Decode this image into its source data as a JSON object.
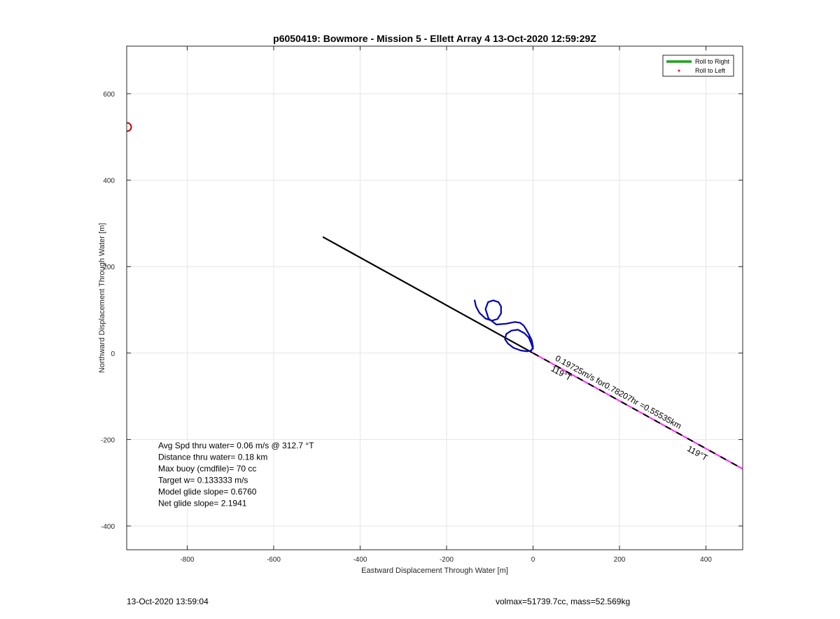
{
  "footer": {
    "left": "13-Oct-2020 13:59:04",
    "right": "volmax=51739.7cc, mass=52.569kg"
  },
  "chart_data": {
    "type": "line",
    "title": "p6050419: Bowmore - Mission 5 - Ellett Array 4 13-Oct-2020 12:59:29Z",
    "xlabel": "Eastward Displacement Through Water [m]",
    "ylabel": "Northward Displacement Through Water [m]",
    "xlim": [
      -940,
      485
    ],
    "ylim": [
      -455,
      710
    ],
    "xticks": [
      -800,
      -600,
      -400,
      -200,
      0,
      200,
      400
    ],
    "yticks": [
      -400,
      -200,
      0,
      200,
      400,
      600
    ],
    "grid": true,
    "legend": {
      "position": "top-right",
      "entries": [
        {
          "label": "Roll to Right",
          "color": "#1aa31a",
          "style": "line"
        },
        {
          "label": "Roll to Left",
          "color": "#ff0000",
          "style": "point"
        }
      ]
    },
    "series": [
      {
        "color": "#000000",
        "style": "solid",
        "x": [
          -485,
          0
        ],
        "y": [
          268,
          0
        ]
      },
      {
        "color": "#0000b3",
        "style": "solid",
        "x": [
          -135,
          -132,
          -124,
          -110,
          -95,
          -82,
          -74,
          -74,
          -80,
          -92,
          -104,
          -110,
          -103,
          -85,
          -62,
          -42,
          -30,
          -22,
          -16,
          -10,
          -3,
          0,
          -4,
          -14,
          -28,
          -45,
          -58,
          -65,
          -62,
          -50,
          -35,
          -20,
          -10,
          -4,
          0
        ],
        "y": [
          122,
          108,
          93,
          80,
          75,
          79,
          92,
          108,
          118,
          122,
          118,
          102,
          80,
          66,
          68,
          72,
          70,
          64,
          55,
          44,
          30,
          14,
          6,
          4,
          6,
          12,
          22,
          32,
          44,
          52,
          54,
          46,
          36,
          22,
          10
        ]
      },
      {
        "color": "#ff33ff",
        "style": "solid",
        "x": [
          0,
          485
        ],
        "y": [
          0,
          -268
        ]
      },
      {
        "color": "#000000",
        "style": "dashed",
        "x": [
          0,
          485
        ],
        "y": [
          0,
          -268
        ]
      }
    ],
    "markers": [
      {
        "shape": "circle",
        "color": "#cc0000",
        "x": -940,
        "y": 523
      }
    ],
    "annotations": [
      {
        "text": "0.19725m/s for0.78207hr =0.55535km",
        "x": 50,
        "y": -16,
        "angle": 29
      },
      {
        "text": "119°T",
        "x": 40,
        "y": -40,
        "angle": 29
      },
      {
        "text": "119°T",
        "x": 355,
        "y": -225,
        "angle": 29
      }
    ],
    "stats": [
      "Avg Spd thru water=  0.06 m/s @ 312.7 °T",
      "Distance thru water=  0.18 km",
      "Max buoy (cmdfile)= 70 cc",
      "Target w= 0.133333 m/s",
      "Model glide slope= 0.6760",
      "Net glide slope= 2.1941"
    ]
  }
}
